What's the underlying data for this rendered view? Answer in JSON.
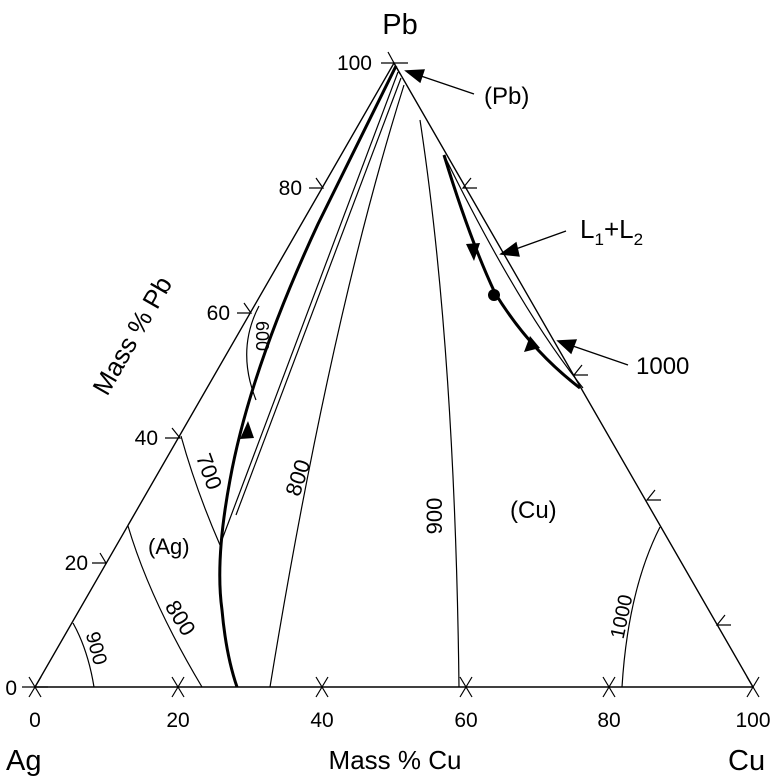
{
  "colors": {
    "line": "#000000",
    "background": "#ffffff"
  },
  "vertices": {
    "top": "Pb",
    "left": "Ag",
    "right": "Cu"
  },
  "axes": {
    "bottom_label": "Mass % Cu",
    "left_label": "Mass % Pb",
    "bottom_ticks": [
      "0",
      "20",
      "40",
      "60",
      "80",
      "100"
    ],
    "left_ticks": [
      "0",
      "20",
      "40",
      "60",
      "80",
      "100"
    ]
  },
  "phase_regions": {
    "ag": "(Ag)",
    "cu": "(Cu)",
    "pb": "(Pb)",
    "l1l2_main": "L",
    "l1l2_sub1": "1",
    "l1l2_plus": "+L",
    "l1l2_sub2": "2"
  },
  "isotherms": {
    "ag_900": "900",
    "ag_800": "800",
    "ag_700": "700",
    "ag_600": "600",
    "mid_800": "800",
    "mid_900": "900",
    "cu_1000": "1000",
    "callout_1000": "1000"
  }
}
